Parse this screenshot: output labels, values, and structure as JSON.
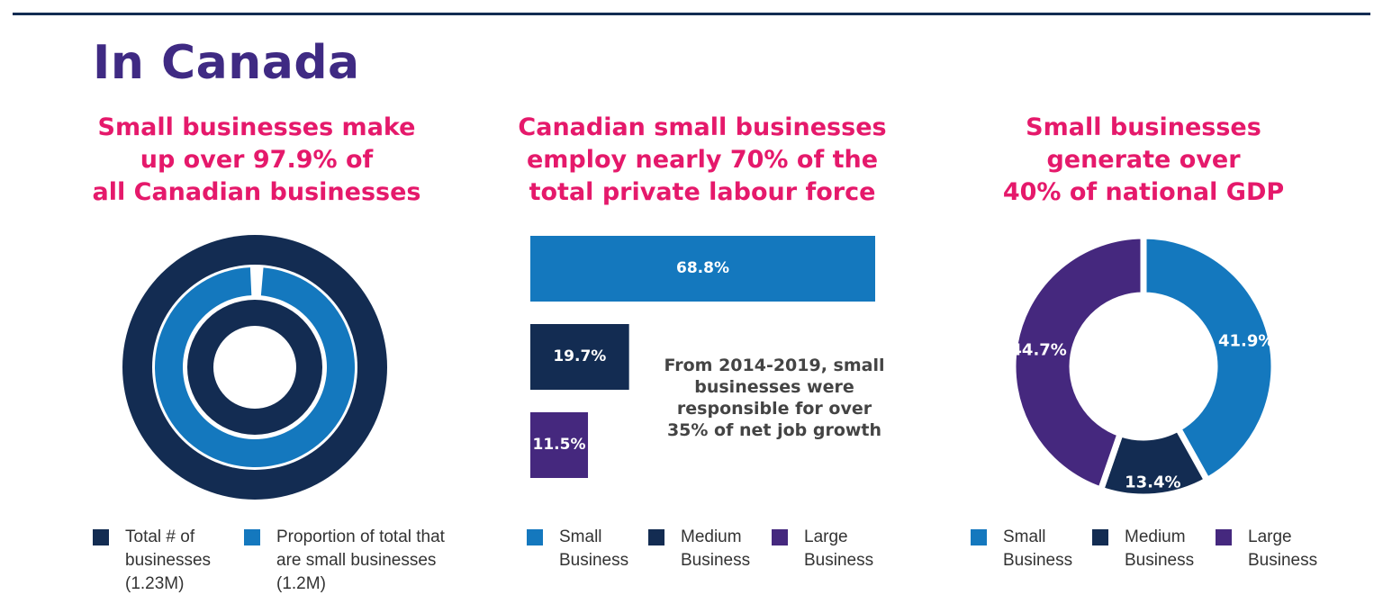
{
  "title": "In Canada",
  "colors": {
    "navy": "#132c52",
    "blue": "#1478be",
    "purple": "#45287e",
    "pink": "#e5196b",
    "title": "#3f2a83"
  },
  "sections": [
    {
      "pre": "Small businesses make",
      "line2a": "up over ",
      "highlight": "97.9%",
      "line2b": " of",
      "line3": "all Canadian businesses"
    },
    {
      "line1": "Canadian small businesses",
      "line2a": "employ nearly ",
      "highlight": "70%",
      "line2b": " of the",
      "line3": "total private labour force"
    },
    {
      "line1": "Small businesses",
      "line2": "generate over",
      "highlight": "40%",
      "line3b": " of national GDP"
    }
  ],
  "note": "From 2014-2019, small businesses were responsible for over 35% of net job growth",
  "chart_data": [
    {
      "type": "pie",
      "subtype": "concentric-donut",
      "series": [
        {
          "name": "Total # of businesses (1.23M)",
          "value": 1.23,
          "unit": "M",
          "color": "#132c52"
        },
        {
          "name": "Proportion of total that are small businesses (1.2M)",
          "value": 1.2,
          "unit": "M",
          "share_percent": 97.9,
          "color": "#1478be"
        }
      ],
      "legend": [
        {
          "label1": "Total # of",
          "label2": "businesses",
          "label3": "(1.23M)",
          "color": "#132c52"
        },
        {
          "label1": "Proportion of total that",
          "label2": "are small businesses",
          "label3": "(1.2M)",
          "color": "#1478be"
        }
      ]
    },
    {
      "type": "bar",
      "orientation": "horizontal",
      "categories": [
        "Small Business",
        "Medium Business",
        "Large Business"
      ],
      "values": [
        68.8,
        19.7,
        11.5
      ],
      "labels": [
        "68.8%",
        "19.7%",
        "11.5%"
      ],
      "colors": [
        "#1478be",
        "#132c52",
        "#45287e"
      ],
      "legend": [
        {
          "label1": "Small",
          "label2": "Business",
          "color": "#1478be"
        },
        {
          "label1": "Medium",
          "label2": "Business",
          "color": "#132c52"
        },
        {
          "label1": "Large",
          "label2": "Business",
          "color": "#45287e"
        }
      ]
    },
    {
      "type": "pie",
      "subtype": "donut",
      "categories": [
        "Small Business",
        "Medium Business",
        "Large Business"
      ],
      "values": [
        41.9,
        13.4,
        44.7
      ],
      "labels": [
        "41.9%",
        "13.4%",
        "44.7%"
      ],
      "colors": [
        "#1478be",
        "#132c52",
        "#45287e"
      ],
      "legend": [
        {
          "label1": "Small",
          "label2": "Business",
          "color": "#1478be"
        },
        {
          "label1": "Medium",
          "label2": "Business",
          "color": "#132c52"
        },
        {
          "label1": "Large",
          "label2": "Business",
          "color": "#45287e"
        }
      ]
    }
  ]
}
